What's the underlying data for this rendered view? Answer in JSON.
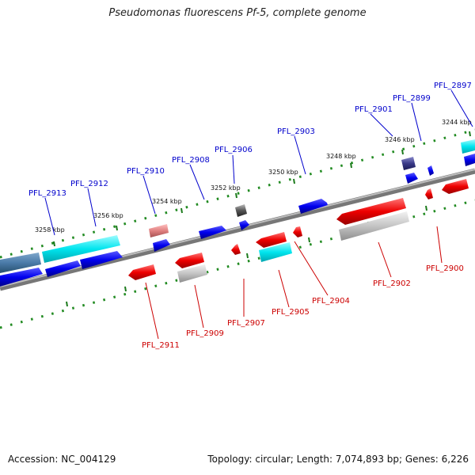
{
  "title": "Pseudomonas fluorescens Pf-5, complete genome",
  "footer": {
    "accession": "Accession: NC_004129",
    "summary": "Topology: circular; Length: 7,074,893 bp; Genes: 6,226"
  },
  "colors": {
    "forward_label": "#0000cc",
    "reverse_label": "#cc0000",
    "tick": "#228b22",
    "backbone": "#888888"
  },
  "kbp_labels": [
    "3244 kbp",
    "3246 kbp",
    "3248 kbp",
    "3250 kbp",
    "3252 kbp",
    "3254 kbp",
    "3256 kbp",
    "3258 kbp"
  ],
  "forward_genes": [
    "PFL_2897",
    "PFL_2899",
    "PFL_2901",
    "PFL_2903",
    "PFL_2906",
    "PFL_2908",
    "PFL_2910",
    "PFL_2912",
    "PFL_2913"
  ],
  "reverse_genes": [
    "PFL_2900",
    "PFL_2902",
    "PFL_2904",
    "PFL_2905",
    "PFL_2907",
    "PFL_2909",
    "PFL_2911"
  ]
}
